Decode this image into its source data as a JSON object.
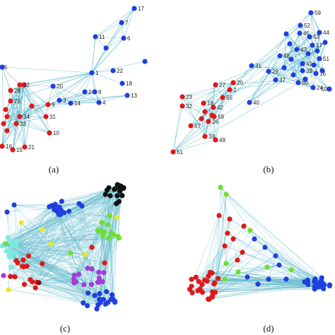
{
  "colors": {
    "edge": "#5bb7c9",
    "blue": "#1f3fe0",
    "red": "#e01818",
    "black": "#111111",
    "green": "#6ee02a",
    "yellow": "#e8e82a",
    "cyan": "#7fe8e0",
    "purple": "#a43ad8",
    "darkred": "#8a1010"
  },
  "panels": [
    {
      "key": "a",
      "label": "(a)"
    },
    {
      "key": "b",
      "label": "(b)"
    },
    {
      "key": "c",
      "label": "(c)"
    },
    {
      "key": "d",
      "label": "(d)"
    }
  ],
  "panel_a_labels": [
    "17",
    "11",
    "7",
    "6",
    "22",
    "1",
    "18",
    "2",
    "8",
    "13",
    "20",
    "4",
    "14",
    "3",
    "9",
    "28",
    "29",
    "32",
    "34",
    "31",
    "33",
    "10",
    "16",
    "15",
    "21",
    "5"
  ],
  "panel_b_labels": [
    "59",
    "52",
    "44",
    "45",
    "53",
    "43",
    "48",
    "17",
    "51",
    "31",
    "41",
    "39",
    "16",
    "29",
    "37",
    "60",
    "24",
    "50",
    "27",
    "23",
    "20",
    "18",
    "2",
    "32",
    "55",
    "42",
    "40",
    "59",
    "57",
    "33",
    "49",
    "61",
    "26"
  ]
}
